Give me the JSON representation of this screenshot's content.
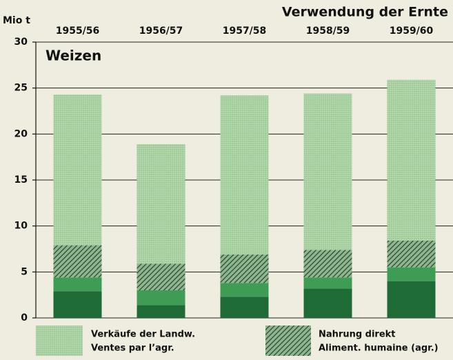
{
  "chart_data": {
    "type": "stacked_bar",
    "title": "Verwendung der Ernte",
    "y_label": "Mio t",
    "panel_label": "Weizen",
    "categories": [
      "1955/56",
      "1956/57",
      "1957/58",
      "1958/59",
      "1959/60"
    ],
    "series": [
      {
        "color": "#1f6b35",
        "values": [
          2.9,
          1.4,
          2.3,
          3.2,
          4.0
        ]
      },
      {
        "color": "#3f9c55",
        "values": [
          1.5,
          1.6,
          1.5,
          1.2,
          1.5
        ]
      },
      {
        "name": [
          "Nahrung direkt",
          "Aliment. humaine (agr.)"
        ],
        "color": "#4f7a55",
        "hatched": true,
        "values": [
          3.5,
          2.9,
          3.1,
          3.0,
          2.9
        ]
      },
      {
        "name": [
          "Verkäufe der Landw.",
          "Ventes par l’agr."
        ],
        "color": "#a9d2a2",
        "values": [
          16.4,
          13.0,
          17.3,
          17.0,
          17.5
        ]
      }
    ],
    "ylim": [
      0,
      30
    ],
    "yticks": [
      0,
      5,
      10,
      15,
      20,
      25,
      30
    ],
    "grid": true
  }
}
